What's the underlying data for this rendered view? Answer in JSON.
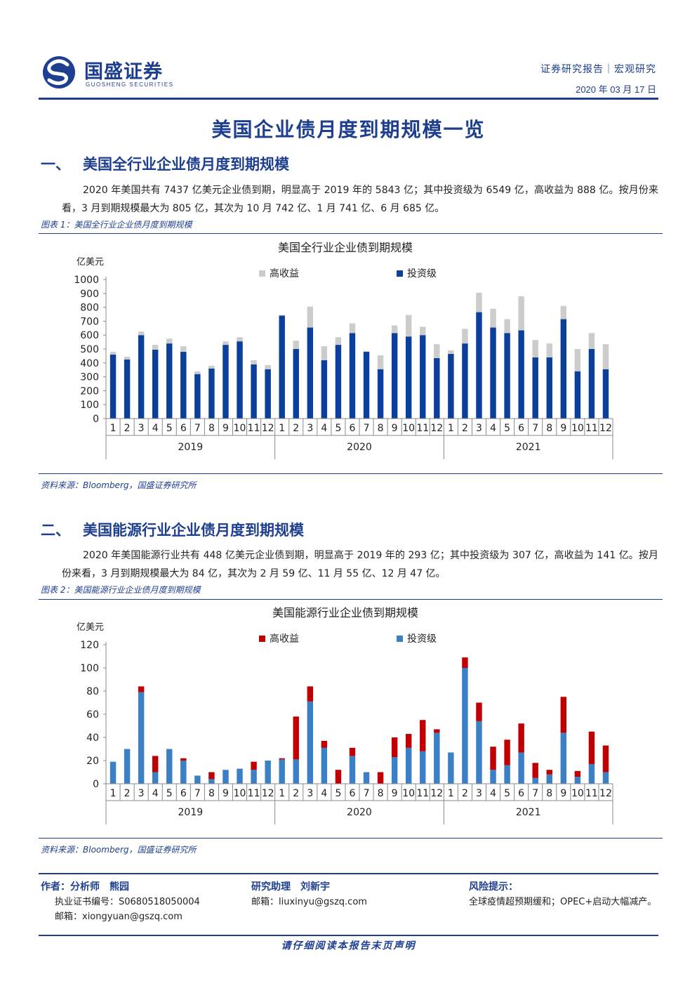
{
  "header": {
    "logo_cn": "国盛证券",
    "logo_en": "GUOSHENG SECURITIES",
    "report_type": "证券研究报告｜宏观研究",
    "date": "2020 年 03 月 17 日"
  },
  "title": "美国企业债月度到期规模一览",
  "section1": {
    "num": "一、",
    "title": "美国全行业企业债月度到期规模",
    "paragraph": "2020 年美国共有 7437 亿美元企业债到期，明显高于 2019 年的 5843 亿；其中投资级为 6549 亿，高收益为 888 亿。按月份来看，3 月到期规模最大为 805 亿，其次为 10 月 742 亿、1 月 741 亿、6 月 685 亿。",
    "figure_label": "图表 1：美国全行业企业债月度到期规模",
    "source": "资料来源：Bloomberg，国盛证券研究所"
  },
  "section2": {
    "num": "二、",
    "title": "美国能源行业企业债月度到期规模",
    "paragraph": "2020 年美国能源行业共有 448 亿美元企业债到期，明显高于 2019 年的 293 亿；其中投资级为 307 亿，高收益为 141 亿。按月份来看，3 月到期规模最大为 84 亿，其次为 2 月 59 亿、11 月 55 亿、12 月 47 亿。",
    "figure_label": "图表 2：美国能源行业企业债月度到期规模",
    "source": "资料来源：Bloomberg，国盛证券研究所"
  },
  "chart_data": [
    {
      "type": "bar",
      "stacked": true,
      "title": "美国全行业企业债到期规模",
      "ylabel": "亿美元",
      "ylim": [
        0,
        1000
      ],
      "yticks": [
        0,
        100,
        200,
        300,
        400,
        500,
        600,
        700,
        800,
        900,
        1000
      ],
      "categories": [
        "1",
        "2",
        "3",
        "4",
        "5",
        "6",
        "7",
        "8",
        "9",
        "10",
        "11",
        "12",
        "1",
        "2",
        "3",
        "4",
        "5",
        "6",
        "7",
        "8",
        "9",
        "10",
        "11",
        "12",
        "1",
        "2",
        "3",
        "4",
        "5",
        "6",
        "7",
        "8",
        "9",
        "10",
        "11",
        "12"
      ],
      "groups": [
        "2019",
        "2020",
        "2021"
      ],
      "legend_position": "top",
      "colors": {
        "投资级": "#0b3f9a",
        "高收益": "#cccccc"
      },
      "series": [
        {
          "name": "投资级",
          "values": [
            460,
            425,
            600,
            495,
            540,
            480,
            320,
            360,
            530,
            555,
            390,
            355,
            740,
            500,
            655,
            420,
            530,
            615,
            480,
            355,
            615,
            590,
            600,
            435,
            465,
            540,
            765,
            655,
            615,
            635,
            440,
            440,
            715,
            340,
            500,
            355
          ]
        },
        {
          "name": "高收益",
          "values": [
            20,
            20,
            25,
            35,
            35,
            40,
            20,
            20,
            25,
            30,
            30,
            30,
            5,
            60,
            150,
            100,
            55,
            70,
            5,
            100,
            55,
            155,
            60,
            100,
            25,
            105,
            140,
            135,
            100,
            245,
            125,
            100,
            95,
            160,
            115,
            180
          ]
        }
      ]
    },
    {
      "type": "bar",
      "stacked": true,
      "title": "美国能源行业企业债到期规模",
      "ylabel": "亿美元",
      "ylim": [
        0,
        120
      ],
      "yticks": [
        0,
        20,
        40,
        60,
        80,
        100,
        120
      ],
      "categories": [
        "1",
        "2",
        "3",
        "4",
        "5",
        "6",
        "7",
        "8",
        "9",
        "10",
        "11",
        "12",
        "1",
        "2",
        "3",
        "4",
        "5",
        "6",
        "7",
        "8",
        "9",
        "10",
        "11",
        "12",
        "1",
        "2",
        "3",
        "4",
        "5",
        "6",
        "7",
        "8",
        "9",
        "10",
        "11",
        "12"
      ],
      "groups": [
        "2019",
        "2020",
        "2021"
      ],
      "legend_position": "top",
      "colors": {
        "投资级": "#3b7fc4",
        "高收益": "#c00000"
      },
      "series": [
        {
          "name": "投资级",
          "values": [
            19,
            30,
            79,
            10,
            30,
            20,
            7,
            4,
            12,
            13,
            12,
            20,
            21,
            21,
            71,
            31,
            0,
            24,
            10,
            0,
            23,
            31,
            28,
            44,
            27,
            100,
            54,
            12,
            16,
            27,
            5,
            8,
            44,
            6,
            17,
            10
          ]
        },
        {
          "name": "高收益",
          "values": [
            0,
            0,
            5,
            14,
            0,
            2,
            0,
            6,
            0,
            0,
            7,
            0,
            1,
            37,
            13,
            6,
            12,
            7,
            0,
            10,
            17,
            12,
            27,
            3,
            0,
            9,
            16,
            20,
            22,
            25,
            13,
            4,
            31,
            5,
            28,
            23
          ]
        }
      ]
    }
  ],
  "footer": {
    "author_title": "作者：分析师　熊园",
    "author_cert": "执业证书编号：S0680518050004",
    "author_email": "邮箱：xiongyuan@gszq.com",
    "assistant_title": "研究助理　刘新宇",
    "assistant_email": "邮箱：liuxinyu@gszq.com",
    "risk_title": "风险提示：",
    "risk_text": "全球疫情超预期缓和；OPEC+启动大幅减产。",
    "disclaimer": "请仔细阅读本报告末页声明"
  }
}
